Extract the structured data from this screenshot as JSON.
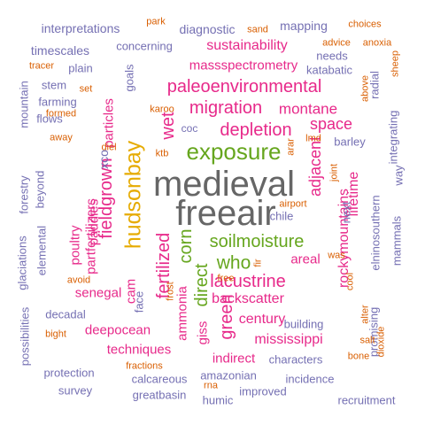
{
  "palette": {
    "grey": "#666666",
    "purple": "#7570b3",
    "magenta": "#e7298a",
    "green": "#66a61e",
    "gold": "#e6ab02",
    "orange": "#d95f02"
  },
  "words": [
    {
      "text": "medieval",
      "color": "#666666",
      "rotated": false
    },
    {
      "text": "freeair",
      "color": "#666666",
      "rotated": false
    },
    {
      "text": "hudsonbay",
      "color": "#e6ab02",
      "rotated": true
    },
    {
      "text": "exposure",
      "color": "#66a61e",
      "rotated": false
    },
    {
      "text": "soilmoisture",
      "color": "#66a61e",
      "rotated": false
    },
    {
      "text": "paleoenvironmental",
      "color": "#e7298a",
      "rotated": false
    },
    {
      "text": "migration",
      "color": "#e7298a",
      "rotated": false
    },
    {
      "text": "depletion",
      "color": "#e7298a",
      "rotated": false
    },
    {
      "text": "lacustrine",
      "color": "#e7298a",
      "rotated": false
    },
    {
      "text": "who",
      "color": "#66a61e",
      "rotated": false
    },
    {
      "text": "corn",
      "color": "#66a61e",
      "rotated": true
    },
    {
      "text": "direct",
      "color": "#66a61e",
      "rotated": true
    },
    {
      "text": "green",
      "color": "#e7298a",
      "rotated": true
    },
    {
      "text": "fieldgrown",
      "color": "#e7298a",
      "rotated": true
    },
    {
      "text": "wet",
      "color": "#e7298a",
      "rotated": true
    },
    {
      "text": "fertilized",
      "color": "#e7298a",
      "rotated": true
    },
    {
      "text": "massspectrometry",
      "color": "#e7298a",
      "rotated": false
    },
    {
      "text": "sustainability",
      "color": "#e7298a",
      "rotated": false
    },
    {
      "text": "space",
      "color": "#e7298a",
      "rotated": false
    },
    {
      "text": "montane",
      "color": "#e7298a",
      "rotated": false
    },
    {
      "text": "adjacent",
      "color": "#e7298a",
      "rotated": true
    },
    {
      "text": "rockymountains",
      "color": "#e7298a",
      "rotated": true
    },
    {
      "text": "lifetime",
      "color": "#e7298a",
      "rotated": true
    },
    {
      "text": "backscatter",
      "color": "#e7298a",
      "rotated": false
    },
    {
      "text": "century",
      "color": "#e7298a",
      "rotated": false
    },
    {
      "text": "mississippi",
      "color": "#e7298a",
      "rotated": false
    },
    {
      "text": "deepocean",
      "color": "#e7298a",
      "rotated": false
    },
    {
      "text": "techniques",
      "color": "#e7298a",
      "rotated": false
    },
    {
      "text": "senegal",
      "color": "#e7298a",
      "rotated": false
    },
    {
      "text": "areal",
      "color": "#e7298a",
      "rotated": false
    },
    {
      "text": "indirect",
      "color": "#e7298a",
      "rotated": false
    },
    {
      "text": "ammonia",
      "color": "#e7298a",
      "rotated": true
    },
    {
      "text": "cam",
      "color": "#e7298a",
      "rotated": true
    },
    {
      "text": "giss",
      "color": "#e7298a",
      "rotated": true
    },
    {
      "text": "particles",
      "color": "#e7298a",
      "rotated": true
    },
    {
      "text": "paddies",
      "color": "#e7298a",
      "rotated": true
    },
    {
      "text": "poultry",
      "color": "#e7298a",
      "rotated": true
    },
    {
      "text": "partfertilizers",
      "color": "#e7298a",
      "rotated": true
    },
    {
      "text": "xco",
      "color": "#7570b3",
      "rotated": true
    },
    {
      "text": "interpretations",
      "color": "#7570b3",
      "rotated": false
    },
    {
      "text": "diagnostic",
      "color": "#7570b3",
      "rotated": false
    },
    {
      "text": "mapping",
      "color": "#7570b3",
      "rotated": false
    },
    {
      "text": "timescales",
      "color": "#7570b3",
      "rotated": false
    },
    {
      "text": "concerning",
      "color": "#7570b3",
      "rotated": false
    },
    {
      "text": "needs",
      "color": "#7570b3",
      "rotated": false
    },
    {
      "text": "katabatic",
      "color": "#7570b3",
      "rotated": false
    },
    {
      "text": "plain",
      "color": "#7570b3",
      "rotated": false
    },
    {
      "text": "stem",
      "color": "#7570b3",
      "rotated": false
    },
    {
      "text": "farming",
      "color": "#7570b3",
      "rotated": false
    },
    {
      "text": "flows",
      "color": "#7570b3",
      "rotated": false
    },
    {
      "text": "coc",
      "color": "#7570b3",
      "rotated": false
    },
    {
      "text": "barley",
      "color": "#7570b3",
      "rotated": false
    },
    {
      "text": "chile",
      "color": "#7570b3",
      "rotated": false
    },
    {
      "text": "building",
      "color": "#7570b3",
      "rotated": false
    },
    {
      "text": "characters",
      "color": "#7570b3",
      "rotated": false
    },
    {
      "text": "incidence",
      "color": "#7570b3",
      "rotated": false
    },
    {
      "text": "improved",
      "color": "#7570b3",
      "rotated": false
    },
    {
      "text": "recruitment",
      "color": "#7570b3",
      "rotated": false
    },
    {
      "text": "humic",
      "color": "#7570b3",
      "rotated": false
    },
    {
      "text": "greatbasin",
      "color": "#7570b3",
      "rotated": false
    },
    {
      "text": "calcareous",
      "color": "#7570b3",
      "rotated": false
    },
    {
      "text": "amazonian",
      "color": "#7570b3",
      "rotated": false
    },
    {
      "text": "survey",
      "color": "#7570b3",
      "rotated": false
    },
    {
      "text": "protection",
      "color": "#7570b3",
      "rotated": false
    },
    {
      "text": "decadal",
      "color": "#7570b3",
      "rotated": false
    },
    {
      "text": "face",
      "color": "#7570b3",
      "rotated": true
    },
    {
      "text": "mountain",
      "color": "#7570b3",
      "rotated": true
    },
    {
      "text": "forestry",
      "color": "#7570b3",
      "rotated": true
    },
    {
      "text": "beyond",
      "color": "#7570b3",
      "rotated": true
    },
    {
      "text": "elemental",
      "color": "#7570b3",
      "rotated": true
    },
    {
      "text": "glaciations",
      "color": "#7570b3",
      "rotated": true
    },
    {
      "text": "possibilities",
      "color": "#7570b3",
      "rotated": true
    },
    {
      "text": "goals",
      "color": "#7570b3",
      "rotated": true
    },
    {
      "text": "radial",
      "color": "#7570b3",
      "rotated": true
    },
    {
      "text": "integrating",
      "color": "#7570b3",
      "rotated": true
    },
    {
      "text": "way",
      "color": "#7570b3",
      "rotated": true
    },
    {
      "text": "elninosouthern",
      "color": "#7570b3",
      "rotated": true
    },
    {
      "text": "mammals",
      "color": "#7570b3",
      "rotated": true
    },
    {
      "text": "promising",
      "color": "#7570b3",
      "rotated": true
    },
    {
      "text": "next",
      "color": "#7570b3",
      "rotated": true
    },
    {
      "text": "park",
      "color": "#d95f02",
      "rotated": false
    },
    {
      "text": "sand",
      "color": "#d95f02",
      "rotated": false
    },
    {
      "text": "choices",
      "color": "#d95f02",
      "rotated": false
    },
    {
      "text": "advice",
      "color": "#d95f02",
      "rotated": false
    },
    {
      "text": "anoxia",
      "color": "#d95f02",
      "rotated": false
    },
    {
      "text": "tracer",
      "color": "#d95f02",
      "rotated": false
    },
    {
      "text": "sheep",
      "color": "#d95f02",
      "rotated": true
    },
    {
      "text": "above",
      "color": "#d95f02",
      "rotated": true
    },
    {
      "text": "set",
      "color": "#d95f02",
      "rotated": false
    },
    {
      "text": "formed",
      "color": "#d95f02",
      "rotated": false
    },
    {
      "text": "karoo",
      "color": "#d95f02",
      "rotated": false
    },
    {
      "text": "away",
      "color": "#d95f02",
      "rotated": false
    },
    {
      "text": "diel",
      "color": "#d95f02",
      "rotated": false
    },
    {
      "text": "ktb",
      "color": "#d95f02",
      "rotated": false
    },
    {
      "text": "lmd",
      "color": "#d95f02",
      "rotated": false
    },
    {
      "text": "arar",
      "color": "#d95f02",
      "rotated": true
    },
    {
      "text": "joint",
      "color": "#d95f02",
      "rotated": true
    },
    {
      "text": "airport",
      "color": "#d95f02",
      "rotated": false
    },
    {
      "text": "fir",
      "color": "#d95f02",
      "rotated": true
    },
    {
      "text": "was",
      "color": "#d95f02",
      "rotated": false
    },
    {
      "text": "cool",
      "color": "#d95f02",
      "rotated": true
    },
    {
      "text": "avoid",
      "color": "#d95f02",
      "rotated": false
    },
    {
      "text": "free",
      "color": "#d95f02",
      "rotated": false
    },
    {
      "text": "frost",
      "color": "#d95f02",
      "rotated": true
    },
    {
      "text": "alter",
      "color": "#d95f02",
      "rotated": true
    },
    {
      "text": "salt",
      "color": "#d95f02",
      "rotated": false
    },
    {
      "text": "bight",
      "color": "#d95f02",
      "rotated": false
    },
    {
      "text": "bone",
      "color": "#d95f02",
      "rotated": false
    },
    {
      "text": "dioxide",
      "color": "#d95f02",
      "rotated": true
    },
    {
      "text": "fractions",
      "color": "#d95f02",
      "rotated": false
    },
    {
      "text": "rna",
      "color": "#d95f02",
      "rotated": false
    },
    {
      "text": "algorithms",
      "color": "#d95f02",
      "rotated": false
    }
  ]
}
